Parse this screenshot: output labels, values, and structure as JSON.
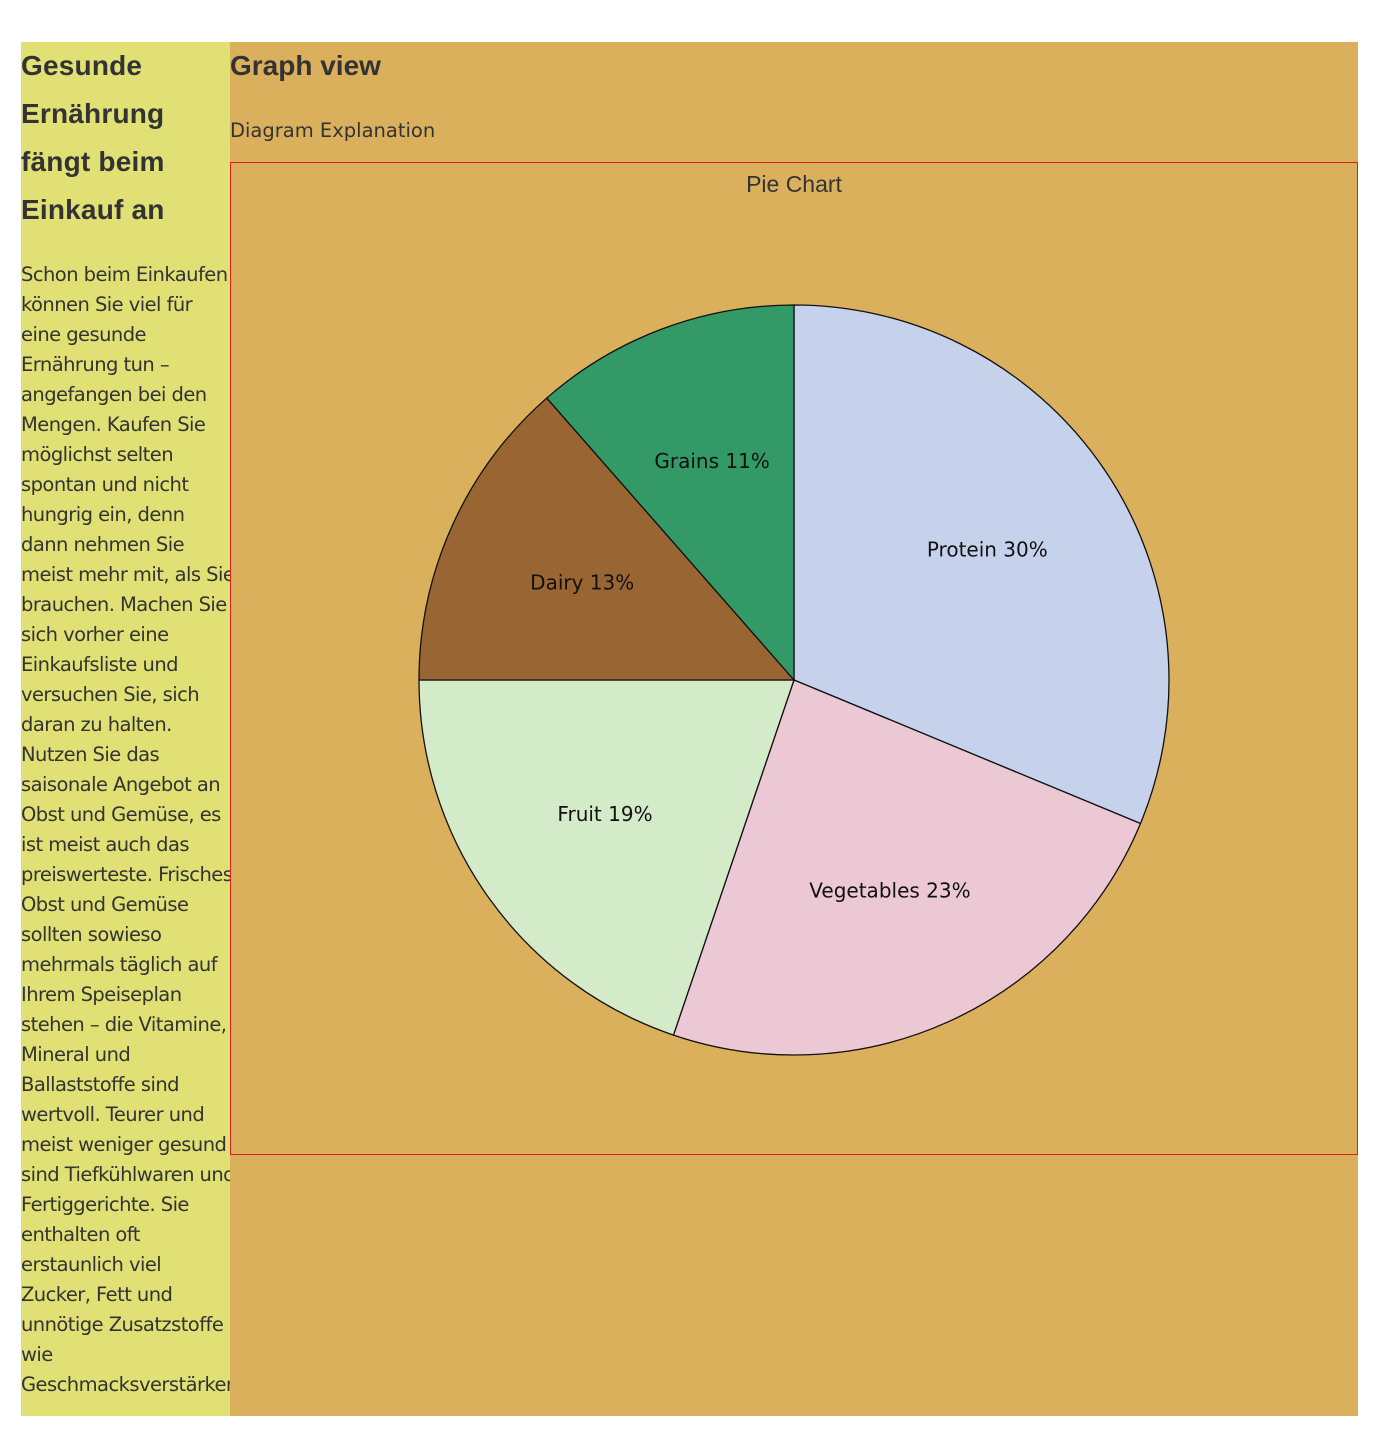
{
  "sidebar": {
    "heading": "Gesunde Ernährung fängt beim Einkauf an",
    "text": "Schon beim Einkaufen können Sie viel für eine gesunde Ernährung tun – angefangen bei den Mengen. Kaufen Sie möglichst selten spontan und nicht hungrig ein, denn dann nehmen Sie meist mehr mit, als Sie brauchen. Machen Sie sich vorher eine Einkaufsliste und versuchen Sie, sich daran zu halten. Nutzen Sie das saisonale Angebot an Obst und Gemüse, es ist meist auch das preiswerteste. Frisches Obst und Gemüse sollten sowieso mehrmals täglich auf Ihrem Speiseplan stehen – die Vitamine, Mineral und Ballaststoffe sind wertvoll. Teurer und meist weniger gesund sind Tiefkühlwaren und Fertiggerichte. Sie enthalten oft erstaunlich viel Zucker, Fett und unnötige Zusatzstoffe wie Geschmacksverstärker."
  },
  "main": {
    "title": "Graph view",
    "explanation": "Diagram Explanation"
  },
  "colors": {
    "sidebar_bg": "#e0e075",
    "main_bg": "#dbb05d",
    "chart_border": "#e02020"
  },
  "chart_data": {
    "type": "pie",
    "title": "Pie Chart",
    "slices": [
      {
        "label": "Protein",
        "value": 30,
        "text": "Protein 30%",
        "color": "#c6d2ec"
      },
      {
        "label": "Vegetables",
        "value": 23,
        "text": "Vegetables 23%",
        "color": "#ecc7d4"
      },
      {
        "label": "Fruit",
        "value": 19,
        "text": "Fruit 19%",
        "color": "#d4ebca"
      },
      {
        "label": "Dairy",
        "value": 13,
        "text": "Dairy 13%",
        "color": "#996633"
      },
      {
        "label": "Grains",
        "value": 11,
        "text": "Grains 11%",
        "color": "#339966"
      }
    ]
  }
}
